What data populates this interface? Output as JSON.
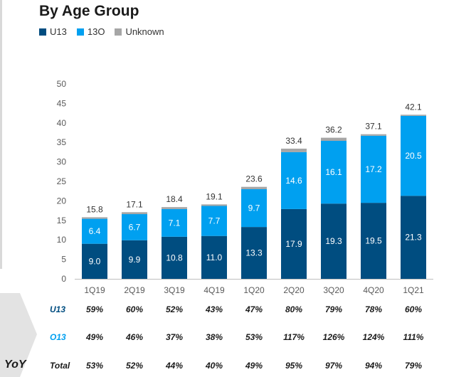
{
  "title": "By Age Group",
  "colors": {
    "u13": "#004d80",
    "o13": "#00a0f0",
    "unknown": "#a6a6a6",
    "axis": "#595959"
  },
  "legend": [
    {
      "label": "U13",
      "color": "#004d80"
    },
    {
      "label": "13O",
      "color": "#00a0f0"
    },
    {
      "label": "Unknown",
      "color": "#a6a6a6"
    }
  ],
  "chart_data": {
    "type": "bar",
    "stacked": true,
    "categories": [
      "1Q19",
      "2Q19",
      "3Q19",
      "4Q19",
      "1Q20",
      "2Q20",
      "3Q20",
      "4Q20",
      "1Q21"
    ],
    "series": [
      {
        "name": "U13",
        "values": [
          9.0,
          9.9,
          10.8,
          11.0,
          13.3,
          17.9,
          19.3,
          19.5,
          21.3
        ],
        "labels": [
          "9.0",
          "9.9",
          "10.8",
          "11.0",
          "13.3",
          "17.9",
          "19.3",
          "19.5",
          "21.3"
        ]
      },
      {
        "name": "13O",
        "values": [
          6.4,
          6.7,
          7.1,
          7.7,
          9.7,
          14.6,
          16.1,
          17.2,
          20.5
        ],
        "labels": [
          "6.4",
          "6.7",
          "7.1",
          "7.7",
          "9.7",
          "14.6",
          "16.1",
          "17.2",
          "20.5"
        ]
      },
      {
        "name": "Unknown",
        "values": [
          0.4,
          0.5,
          0.5,
          0.4,
          0.6,
          0.9,
          0.8,
          0.4,
          0.3
        ]
      }
    ],
    "totals": [
      "15.8",
      "17.1",
      "18.4",
      "19.1",
      "23.6",
      "33.4",
      "36.2",
      "37.1",
      "42.1"
    ],
    "yticks": [
      "0",
      "5",
      "10",
      "15",
      "20",
      "25",
      "30",
      "35",
      "40",
      "45",
      "50"
    ],
    "ylim": [
      0,
      50
    ]
  },
  "yoy": {
    "label": "YoY",
    "rows": [
      {
        "name": "U13",
        "color": "#004d80",
        "values": [
          "59%",
          "60%",
          "52%",
          "43%",
          "47%",
          "80%",
          "79%",
          "78%",
          "60%"
        ]
      },
      {
        "name": "O13",
        "color": "#00a0f0",
        "values": [
          "49%",
          "46%",
          "37%",
          "38%",
          "53%",
          "117%",
          "126%",
          "124%",
          "111%"
        ]
      },
      {
        "name": "Total",
        "color": "#1a1a1a",
        "values": [
          "53%",
          "52%",
          "44%",
          "40%",
          "49%",
          "95%",
          "97%",
          "94%",
          "79%"
        ]
      }
    ]
  }
}
